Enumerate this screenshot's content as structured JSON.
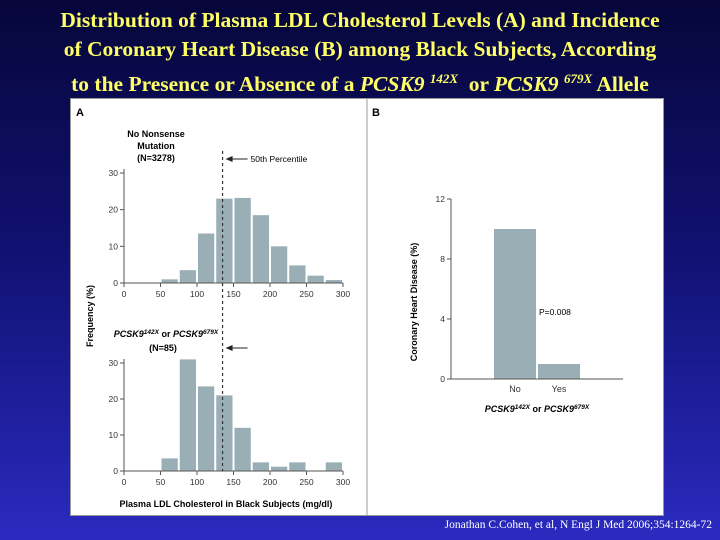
{
  "slide": {
    "title_line1": "Distribution of Plasma LDL Cholesterol Levels (A) and Incidence",
    "title_line2": "of Coronary Heart Disease (B) among Black Subjects, According",
    "title_line3_pre": "to the Presence or Absence of a",
    "title_gene": "PCSK9",
    "title_sup1": "142X",
    "title_or": "or",
    "title_sup2": "679X",
    "title_end": "Allele",
    "citation": "Jonathan C.Cohen, et al, N Engl J Med 2006;354:1264-72"
  },
  "colors": {
    "bar": "#9aaeb6",
    "title": "#ffff66",
    "axis": "#555555"
  },
  "chart_data": [
    {
      "type": "bar",
      "panel": "A",
      "subplot": "top",
      "group_label": [
        "No Nonsense",
        "Mutation",
        "(N=3278)"
      ],
      "annotation": "50th Percentile",
      "x_bins": [
        25,
        50,
        75,
        100,
        125,
        150,
        175,
        200,
        225,
        250,
        275
      ],
      "bin_width": 25,
      "values": [
        0,
        1,
        3.5,
        13.5,
        23,
        23.2,
        18.5,
        10,
        4.8,
        2,
        0.8
      ],
      "xticks": [
        0,
        50,
        100,
        150,
        200,
        250,
        300
      ],
      "yticks": [
        0,
        10,
        20,
        30
      ],
      "xlim": [
        0,
        300
      ],
      "ylim": [
        0,
        30
      ],
      "median_line": 135
    },
    {
      "type": "bar",
      "panel": "A",
      "subplot": "bottom",
      "group_label_gene": "PCSK9",
      "group_label_sup1": "142X",
      "group_label_or": "or",
      "group_label_sup2": "679X",
      "group_label_n": "(N=85)",
      "x_bins": [
        25,
        50,
        75,
        100,
        125,
        150,
        175,
        200,
        225,
        250,
        275
      ],
      "bin_width": 25,
      "values": [
        0,
        3.5,
        31,
        23.5,
        21,
        12,
        2.4,
        1.2,
        2.4,
        0,
        2.4
      ],
      "xticks": [
        0,
        50,
        100,
        150,
        200,
        250,
        300
      ],
      "yticks": [
        0,
        10,
        20,
        30
      ],
      "xlim": [
        0,
        300
      ],
      "ylim": [
        0,
        30
      ],
      "median_line": 135,
      "ylabel": "Frequency (%)",
      "xlabel": "Plasma LDL Cholesterol in Black Subjects (mg/dl)"
    },
    {
      "type": "bar",
      "panel": "B",
      "categories": [
        "No",
        "Yes"
      ],
      "values": [
        10,
        1
      ],
      "yticks": [
        0,
        4,
        8,
        12
      ],
      "ylim": [
        0,
        12
      ],
      "ylabel": "Coronary Heart Disease (%)",
      "xlabel_gene": "PCSK9",
      "xlabel_sup1": "142X",
      "xlabel_or": "or",
      "xlabel_sup2": "679X",
      "annotation": "P=0.008"
    }
  ]
}
